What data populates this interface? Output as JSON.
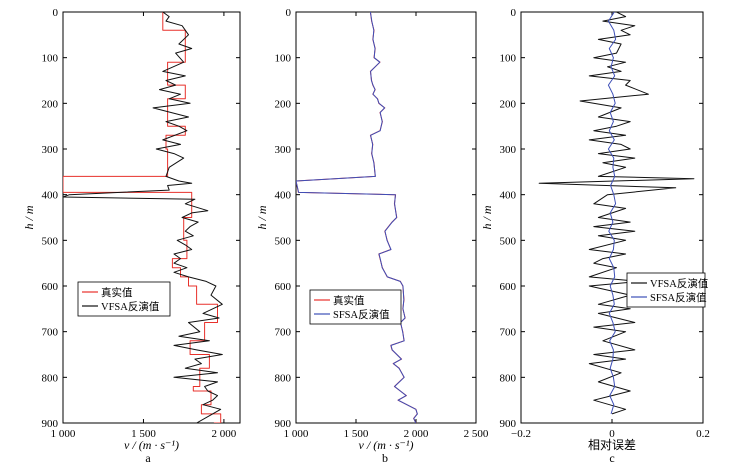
{
  "chart_data": [
    {
      "type": "line",
      "panel": "a",
      "xlabel": "v / (m · s⁻¹)",
      "ylabel": "h / m",
      "xlim": [
        1000,
        2100
      ],
      "ylim": [
        0,
        900
      ],
      "y_inverted": true,
      "xticks": [
        1000,
        1500,
        2000
      ],
      "xtick_labels": [
        "1 000",
        "1 500",
        "2 000"
      ],
      "yticks": [
        0,
        100,
        200,
        300,
        400,
        500,
        600,
        700,
        800,
        900
      ],
      "legend": {
        "position": "center-left",
        "entries": [
          "真实值",
          "VFSA反演值"
        ]
      },
      "series": [
        {
          "name": "真实值",
          "color": "#e8312b",
          "x": [
            1620,
            1620,
            1760,
            1760,
            1650,
            1650,
            1760,
            1760,
            1650,
            1650,
            1760,
            1760,
            1640,
            1640,
            1650,
            1650,
            1000,
            1000,
            1800,
            1800,
            1750,
            1750,
            1770,
            1770,
            1680,
            1680,
            1730,
            1730,
            1780,
            1780,
            1830,
            1830,
            1960,
            1960,
            1880,
            1880,
            1790,
            1790,
            1910,
            1910,
            1850,
            1850,
            1810,
            1810,
            1920,
            1920,
            1860,
            1860,
            1980,
            1980,
            1940,
            1940,
            2010,
            2010
          ],
          "y": [
            0,
            40,
            40,
            110,
            110,
            160,
            160,
            190,
            190,
            250,
            250,
            270,
            270,
            300,
            300,
            360,
            360,
            395,
            395,
            450,
            450,
            500,
            500,
            540,
            540,
            560,
            560,
            580,
            580,
            600,
            600,
            640,
            640,
            680,
            680,
            720,
            720,
            750,
            750,
            780,
            780,
            820,
            820,
            830,
            830,
            860,
            860,
            880,
            880,
            900,
            900,
            920,
            920,
            900
          ]
        },
        {
          "name": "VFSA反演值",
          "color": "#111111",
          "x": [
            1620,
            1660,
            1640,
            1740,
            1780,
            1720,
            1800,
            1700,
            1750,
            1620,
            1760,
            1640,
            1700,
            1600,
            1730,
            1660,
            1790,
            1560,
            1780,
            1640,
            1720,
            1770,
            1620,
            1730,
            1580,
            1690,
            1750,
            1660,
            1640,
            1720,
            1800,
            1650,
            1660,
            1040,
            1000,
            1820,
            1760,
            1900,
            1800,
            1740,
            1840,
            1790,
            1760,
            1810,
            1710,
            1760,
            1800,
            1690,
            1730,
            1690,
            1770,
            1690,
            1780,
            1890,
            1950,
            1920,
            1990,
            1870,
            1970,
            1780,
            1850,
            1720,
            1910,
            1690,
            1830,
            1990,
            1820,
            1860,
            1760,
            1960,
            1690,
            1960,
            1880,
            1900,
            1960,
            1930,
            1870,
            1980,
            1930,
            1830
          ],
          "y": [
            0,
            10,
            20,
            30,
            50,
            70,
            80,
            90,
            110,
            130,
            140,
            150,
            160,
            170,
            180,
            190,
            200,
            210,
            230,
            240,
            250,
            260,
            280,
            290,
            300,
            310,
            320,
            340,
            360,
            370,
            375,
            380,
            390,
            400,
            405,
            410,
            420,
            435,
            440,
            450,
            460,
            470,
            480,
            490,
            500,
            510,
            520,
            530,
            540,
            550,
            560,
            570,
            580,
            590,
            600,
            620,
            640,
            660,
            670,
            680,
            700,
            710,
            720,
            730,
            740,
            750,
            760,
            770,
            780,
            790,
            800,
            810,
            820,
            830,
            840,
            850,
            860,
            870,
            880,
            900
          ]
        }
      ]
    },
    {
      "type": "line",
      "panel": "b",
      "xlabel": "v / (m · s⁻¹)",
      "ylabel": "h / m",
      "xlim": [
        1000,
        2500
      ],
      "ylim": [
        0,
        900
      ],
      "y_inverted": true,
      "xticks": [
        1000,
        1500,
        2000,
        2500
      ],
      "xtick_labels": [
        "1 000",
        "1 500",
        "2 000",
        "2 500"
      ],
      "yticks": [
        0,
        100,
        200,
        300,
        400,
        500,
        600,
        700,
        800,
        900
      ],
      "legend": {
        "position": "center-left",
        "entries": [
          "真实值",
          "SFSA反演值"
        ]
      },
      "series": [
        {
          "name": "真实值",
          "color": "#e8312b",
          "x": [
            1620,
            1630,
            1650,
            1640,
            1660,
            1650,
            1700,
            1620,
            1630,
            1640,
            1660,
            1640,
            1680,
            1690,
            1740,
            1700,
            1720,
            1700,
            1620,
            1640,
            1630,
            1650,
            1660,
            1000,
            1020,
            1830,
            1820,
            1840,
            1800,
            1740,
            1760,
            1790,
            1690,
            1700,
            1720,
            1760,
            1870,
            1890,
            1900,
            1890,
            1910,
            1870,
            1890,
            1900,
            1790,
            1800,
            1880,
            1810,
            1860,
            1900,
            1820,
            1920,
            1850,
            2000,
            2010,
            1980,
            2000
          ],
          "y": [
            0,
            20,
            40,
            60,
            80,
            100,
            110,
            130,
            150,
            160,
            170,
            180,
            190,
            200,
            210,
            220,
            240,
            260,
            270,
            290,
            310,
            330,
            360,
            370,
            395,
            400,
            420,
            450,
            460,
            480,
            500,
            520,
            530,
            540,
            560,
            580,
            590,
            600,
            630,
            650,
            670,
            680,
            700,
            720,
            730,
            740,
            760,
            770,
            780,
            800,
            820,
            840,
            850,
            870,
            880,
            890,
            900
          ]
        },
        {
          "name": "SFSA反演值",
          "color": "#3d4fb8",
          "x": [
            1620,
            1632,
            1648,
            1642,
            1658,
            1652,
            1698,
            1622,
            1628,
            1642,
            1658,
            1642,
            1678,
            1692,
            1738,
            1702,
            1718,
            1702,
            1622,
            1638,
            1632,
            1648,
            1662,
            1000,
            1022,
            1828,
            1822,
            1838,
            1802,
            1742,
            1758,
            1792,
            1692,
            1702,
            1718,
            1762,
            1868,
            1892,
            1898,
            1892,
            1908,
            1872,
            1888,
            1902,
            1792,
            1802,
            1878,
            1812,
            1858,
            1902,
            1822,
            1918,
            1852,
            1998,
            2012,
            1982,
            1998
          ],
          "y": [
            0,
            20,
            40,
            60,
            80,
            100,
            110,
            130,
            150,
            160,
            170,
            180,
            190,
            200,
            210,
            220,
            240,
            260,
            270,
            290,
            310,
            330,
            360,
            370,
            395,
            400,
            420,
            450,
            460,
            480,
            500,
            520,
            530,
            540,
            560,
            580,
            590,
            600,
            630,
            650,
            670,
            680,
            700,
            720,
            730,
            740,
            760,
            770,
            780,
            800,
            820,
            840,
            850,
            870,
            880,
            890,
            900
          ]
        }
      ]
    },
    {
      "type": "line",
      "panel": "c",
      "xlabel": "相对误差",
      "ylabel": "h / m",
      "xlim": [
        -0.2,
        0.2
      ],
      "ylim": [
        0,
        900
      ],
      "y_inverted": true,
      "xticks": [
        -0.2,
        0,
        0.2
      ],
      "xtick_labels": [
        "−0.2",
        "0",
        "0.2"
      ],
      "yticks": [
        0,
        100,
        200,
        300,
        400,
        500,
        600,
        700,
        800,
        900
      ],
      "legend": {
        "position": "center-right",
        "entries": [
          "VFSA反演值",
          "SFSA反演值"
        ]
      },
      "series": [
        {
          "name": "VFSA反演值",
          "color": "#111111",
          "x": [
            0.01,
            0.03,
            -0.02,
            0.05,
            0.02,
            0.04,
            -0.03,
            0.02,
            0.01,
            -0.04,
            0.03,
            -0.01,
            0.02,
            -0.05,
            0.04,
            0.03,
            0.08,
            -0.07,
            0.02,
            -0.03,
            0.04,
            0.01,
            -0.04,
            0.03,
            -0.05,
            0.02,
            0.04,
            -0.03,
            0.05,
            -0.02,
            0.03,
            -0.03,
            0.18,
            -0.16,
            0.14,
            -0.01,
            -0.04,
            0.03,
            -0.03,
            0.04,
            -0.04,
            0.05,
            -0.03,
            0.03,
            -0.05,
            0.03,
            -0.02,
            -0.04,
            0.01,
            -0.05,
            0.06,
            -0.05,
            0.04,
            -0.03,
            0.04,
            -0.03,
            0.05,
            -0.04,
            0.03,
            -0.02,
            0.05,
            -0.04,
            0.03,
            -0.05,
            0.02,
            -0.03,
            0.04,
            0,
            -0.04,
            0.03,
            0
          ],
          "y": [
            0,
            10,
            20,
            30,
            40,
            50,
            60,
            70,
            90,
            100,
            110,
            120,
            130,
            140,
            150,
            160,
            180,
            195,
            210,
            230,
            240,
            250,
            260,
            270,
            280,
            290,
            300,
            310,
            320,
            330,
            340,
            360,
            365,
            375,
            385,
            400,
            420,
            430,
            450,
            460,
            470,
            480,
            490,
            500,
            520,
            530,
            540,
            550,
            560,
            580,
            590,
            600,
            620,
            640,
            650,
            660,
            680,
            690,
            700,
            720,
            740,
            750,
            760,
            770,
            790,
            810,
            830,
            840,
            850,
            870,
            880
          ]
        },
        {
          "name": "SFSA反演值",
          "color": "#3d4fb8",
          "x": [
            0.005,
            -0.008,
            0.004,
            0.008,
            -0.006,
            0.003,
            -0.002,
            0.006,
            -0.008,
            0.002,
            0.007,
            -0.004,
            0.003,
            -0.006,
            0.005,
            -0.008,
            0.004,
            0.002,
            0.006,
            -0.003,
            0.004,
            0.008,
            -0.004,
            0.002,
            -0.007,
            0.005,
            0.003,
            -0.006,
            0.004,
            0.006,
            -0.004,
            0.002,
            0.005,
            -0.006,
            0.002,
            0.007,
            -0.005,
            0.003,
            0.002,
            -0.004,
            0.003,
            0.006,
            -0.005,
            0.004,
            -0.002
          ],
          "y": [
            0,
            20,
            40,
            60,
            80,
            100,
            120,
            140,
            160,
            180,
            200,
            220,
            240,
            260,
            280,
            300,
            320,
            340,
            360,
            380,
            400,
            420,
            440,
            460,
            480,
            500,
            520,
            540,
            560,
            580,
            600,
            620,
            640,
            660,
            680,
            700,
            720,
            740,
            760,
            780,
            800,
            820,
            840,
            860,
            880
          ]
        }
      ]
    }
  ],
  "panel_letters": [
    "a",
    "b",
    "c"
  ]
}
